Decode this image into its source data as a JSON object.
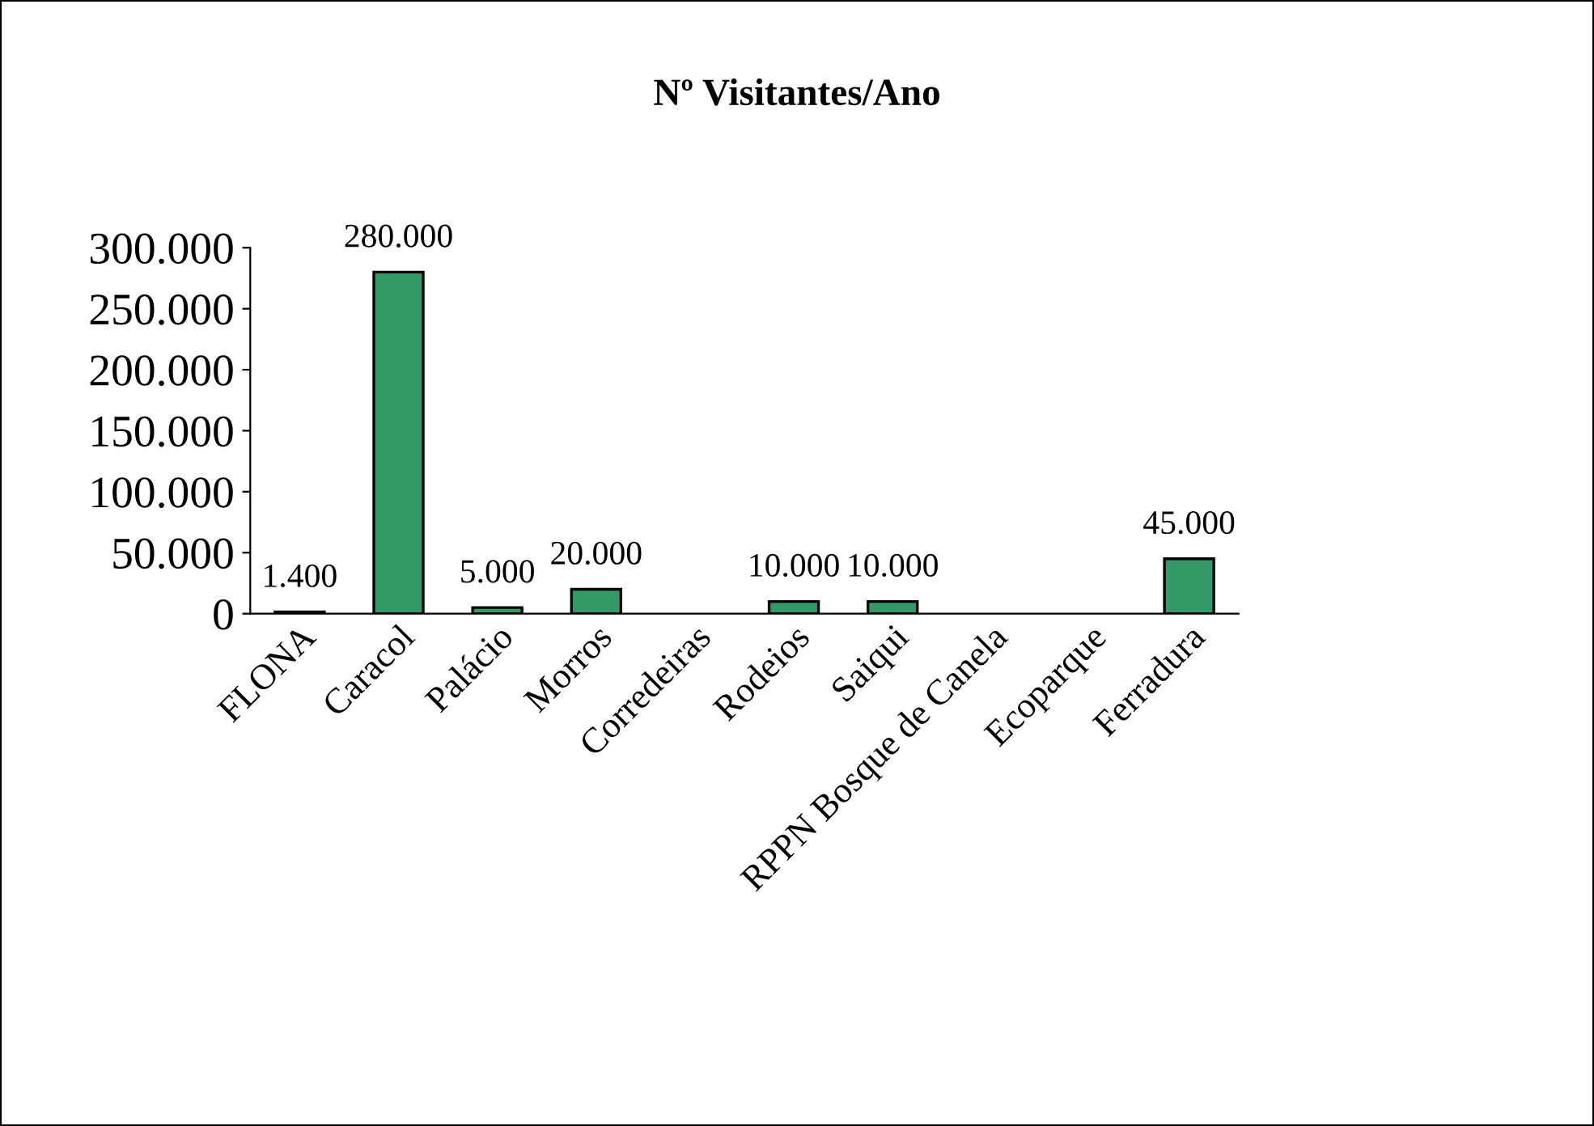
{
  "chart_data": {
    "type": "bar",
    "title": "Nº Visitantes/Ano",
    "categories": [
      "FLONA",
      "Caracol",
      "Palácio",
      "Morros",
      "Corredeiras",
      "Rodeios",
      "Saiqui",
      "RPPN Bosque de Canela",
      "Ecoparque",
      "Ferradura"
    ],
    "values": [
      1400,
      280000,
      5000,
      20000,
      null,
      10000,
      10000,
      null,
      null,
      45000
    ],
    "value_labels": [
      "1.400",
      "280.000",
      "5.000",
      "20.000",
      null,
      "10.000",
      "10.000",
      null,
      null,
      "45.000"
    ],
    "color": "#339966",
    "ylim": [
      0,
      300000
    ],
    "yticks": [
      {
        "value": 0,
        "label": "0"
      },
      {
        "value": 50000,
        "label": "50.000"
      },
      {
        "value": 100000,
        "label": "100.000"
      },
      {
        "value": 150000,
        "label": "150.000"
      },
      {
        "value": 200000,
        "label": "200.000"
      },
      {
        "value": 250000,
        "label": "250.000"
      },
      {
        "value": 300000,
        "label": "300.000"
      }
    ],
    "grid": false,
    "legend": false
  }
}
